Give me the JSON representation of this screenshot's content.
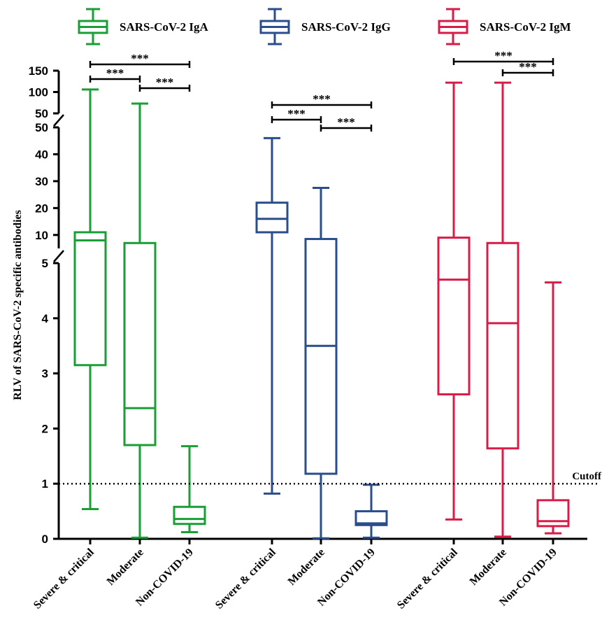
{
  "chart_data": {
    "type": "boxplot",
    "ylabel": "RLV of SARS-CoV-2 specific antibodies",
    "y_axis_segments": [
      {
        "range": [
          0,
          5
        ],
        "ticks": [
          0,
          1,
          2,
          3,
          4,
          5
        ]
      },
      {
        "range": [
          5,
          50
        ],
        "ticks": [
          10,
          20,
          30,
          40,
          50
        ]
      },
      {
        "range": [
          50,
          150
        ],
        "ticks": [
          50,
          100,
          150
        ]
      }
    ],
    "categories": [
      "Severe & critical",
      "Moderate",
      "Non-COVID-19"
    ],
    "series": [
      {
        "name": "SARS-CoV-2 IgA",
        "color": "#1a9e36",
        "boxes": [
          {
            "category": "Severe & critical",
            "min": 0.54,
            "q1": 3.15,
            "median": 8,
            "q3": 11,
            "max": 106
          },
          {
            "category": "Moderate",
            "min": 0.02,
            "q1": 1.7,
            "median": 2.37,
            "q3": 7,
            "max": 73
          },
          {
            "category": "Non-COVID-19",
            "min": 0.12,
            "q1": 0.27,
            "median": 0.36,
            "q3": 0.58,
            "max": 1.68
          }
        ]
      },
      {
        "name": "SARS-CoV-2 IgG",
        "color": "#2a4d8c",
        "boxes": [
          {
            "category": "Severe & critical",
            "min": 0.82,
            "q1": 11,
            "median": 16,
            "q3": 22,
            "max": 46
          },
          {
            "category": "Moderate",
            "min": 0.01,
            "q1": 1.18,
            "median": 3.5,
            "q3": 8.5,
            "max": 27.5
          },
          {
            "category": "Non-COVID-19",
            "min": 0.02,
            "q1": 0.25,
            "median": 0.28,
            "q3": 0.5,
            "max": 0.98
          }
        ]
      },
      {
        "name": "SARS-CoV-2 IgM",
        "color": "#d81b47",
        "boxes": [
          {
            "category": "Severe & critical",
            "min": 0.35,
            "q1": 2.62,
            "median": 4.7,
            "q3": 9,
            "max": 122
          },
          {
            "category": "Moderate",
            "min": 0.04,
            "q1": 1.64,
            "median": 3.91,
            "q3": 7,
            "max": 122
          },
          {
            "category": "Non-COVID-19",
            "min": 0.1,
            "q1": 0.23,
            "median": 0.32,
            "q3": 0.7,
            "max": 4.65
          }
        ]
      }
    ],
    "reference_line": {
      "label": "Cutoff",
      "value": 1,
      "style": "dotted"
    },
    "significance": [
      {
        "series": "SARS-CoV-2 IgA",
        "from": "Severe & critical",
        "to": "Non-COVID-19",
        "label": "***"
      },
      {
        "series": "SARS-CoV-2 IgA",
        "from": "Severe & critical",
        "to": "Moderate",
        "label": "***"
      },
      {
        "series": "SARS-CoV-2 IgA",
        "from": "Moderate",
        "to": "Non-COVID-19",
        "label": "***"
      },
      {
        "series": "SARS-CoV-2 IgG",
        "from": "Severe & critical",
        "to": "Non-COVID-19",
        "label": "***"
      },
      {
        "series": "SARS-CoV-2 IgG",
        "from": "Severe & critical",
        "to": "Moderate",
        "label": "***"
      },
      {
        "series": "SARS-CoV-2 IgG",
        "from": "Moderate",
        "to": "Non-COVID-19",
        "label": "***"
      },
      {
        "series": "SARS-CoV-2 IgM",
        "from": "Severe & critical",
        "to": "Non-COVID-19",
        "label": "***"
      },
      {
        "series": "SARS-CoV-2 IgM",
        "from": "Moderate",
        "to": "Non-COVID-19",
        "label": "***"
      }
    ],
    "legend_position": "top"
  }
}
